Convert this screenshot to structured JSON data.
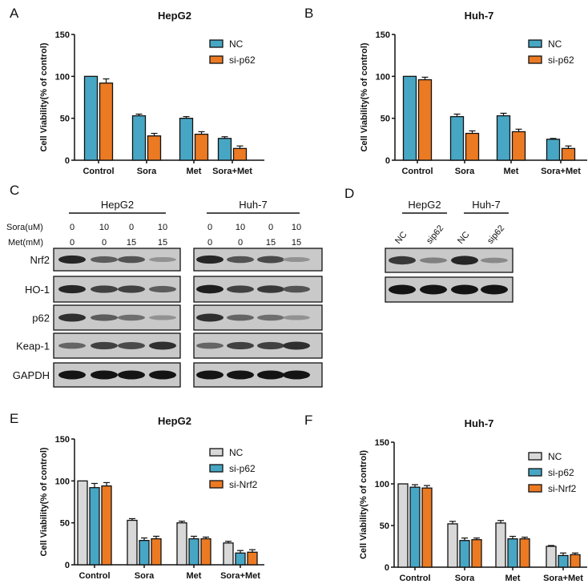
{
  "colors": {
    "NC_blue": "#47a6c4",
    "si_orange": "#ec7a23",
    "NC_gray": "#d8d8d8"
  },
  "chart_data": [
    {
      "panel": "A",
      "type": "bar",
      "title": "HepG2",
      "ylabel": "Cell Viability(% of control)",
      "ylim": [
        0,
        150
      ],
      "yticks": [
        0,
        50,
        100,
        150
      ],
      "categories": [
        "Control",
        "Sora",
        "Met",
        "Sora+Met"
      ],
      "legend": "top-right",
      "series": [
        {
          "name": "NC",
          "color": "#47a6c4",
          "values": [
            100,
            53,
            50,
            26
          ],
          "errors": [
            0,
            2,
            2,
            2
          ]
        },
        {
          "name": "si-p62",
          "color": "#ec7a23",
          "values": [
            92,
            29,
            31,
            14
          ],
          "errors": [
            5,
            3,
            3,
            3
          ]
        }
      ]
    },
    {
      "panel": "B",
      "type": "bar",
      "title": "Huh-7",
      "ylabel": "Cell Viability(% of control)",
      "ylim": [
        0,
        150
      ],
      "yticks": [
        0,
        50,
        100,
        150
      ],
      "categories": [
        "Control",
        "Sora",
        "Met",
        "Sora+Met"
      ],
      "legend": "top-right",
      "series": [
        {
          "name": "NC",
          "color": "#47a6c4",
          "values": [
            100,
            52,
            53,
            25
          ],
          "errors": [
            0,
            3,
            3,
            1
          ]
        },
        {
          "name": "si-p62",
          "color": "#ec7a23",
          "values": [
            96,
            32,
            34,
            14
          ],
          "errors": [
            3,
            3,
            3,
            3
          ]
        }
      ]
    },
    {
      "panel": "E",
      "type": "bar",
      "title": "HepG2",
      "ylabel": "Cell Viability(% of control)",
      "ylim": [
        0,
        150
      ],
      "yticks": [
        0,
        50,
        100,
        150
      ],
      "categories": [
        "Control",
        "Sora",
        "Met",
        "Sora+Met"
      ],
      "legend": "top-right",
      "series": [
        {
          "name": "NC",
          "color": "#d8d8d8",
          "values": [
            100,
            53,
            50,
            26
          ],
          "errors": [
            0,
            2,
            2,
            2
          ]
        },
        {
          "name": "si-p62",
          "color": "#47a6c4",
          "values": [
            92,
            29,
            31,
            14
          ],
          "errors": [
            5,
            3,
            3,
            3
          ]
        },
        {
          "name": "si-Nrf2",
          "color": "#ec7a23",
          "values": [
            94,
            31,
            31,
            15
          ],
          "errors": [
            4,
            3,
            2,
            3
          ]
        }
      ]
    },
    {
      "panel": "F",
      "type": "bar",
      "title": "Huh-7",
      "ylabel": "Cell Viability(% of control)",
      "ylim": [
        0,
        150
      ],
      "yticks": [
        0,
        50,
        100,
        150
      ],
      "categories": [
        "Control",
        "Sora",
        "Met",
        "Sora+Met"
      ],
      "legend": "top-right",
      "series": [
        {
          "name": "NC",
          "color": "#d8d8d8",
          "values": [
            100,
            52,
            53,
            25
          ],
          "errors": [
            0,
            3,
            3,
            1
          ]
        },
        {
          "name": "si-p62",
          "color": "#47a6c4",
          "values": [
            96,
            32,
            34,
            14
          ],
          "errors": [
            3,
            3,
            3,
            3
          ]
        },
        {
          "name": "si-Nrf2",
          "color": "#ec7a23",
          "values": [
            95,
            33,
            34,
            15
          ],
          "errors": [
            3,
            2,
            2,
            2
          ]
        }
      ]
    }
  ],
  "blot_c": {
    "panel": "C",
    "groups": [
      "HepG2",
      "Huh-7"
    ],
    "row_labels": {
      "sora": "Sora(uM)",
      "met": "Met(mM)"
    },
    "sora": [
      "0",
      "10",
      "0",
      "10"
    ],
    "met": [
      "0",
      "0",
      "15",
      "15"
    ],
    "proteins": [
      "Nrf2",
      "HO-1",
      "p62",
      "Keap-1",
      "GAPDH"
    ],
    "band_intensity": {
      "HepG2": [
        [
          0.9,
          0.6,
          0.65,
          0.3
        ],
        [
          0.9,
          0.75,
          0.75,
          0.6
        ],
        [
          0.85,
          0.6,
          0.5,
          0.3
        ],
        [
          0.55,
          0.75,
          0.7,
          0.85
        ],
        [
          1,
          1,
          1,
          1
        ]
      ],
      "Huh-7": [
        [
          0.9,
          0.65,
          0.7,
          0.3
        ],
        [
          0.95,
          0.75,
          0.8,
          0.65
        ],
        [
          0.85,
          0.55,
          0.5,
          0.3
        ],
        [
          0.55,
          0.75,
          0.75,
          0.85
        ],
        [
          1,
          1,
          1,
          1
        ]
      ]
    }
  },
  "blot_d": {
    "panel": "D",
    "groups": [
      "HepG2",
      "Huh-7"
    ],
    "lanes": [
      "NC",
      "sip62",
      "NC",
      "sip62"
    ],
    "band_intensity": [
      [
        0.8,
        0.4,
        0.9,
        0.35
      ],
      [
        1,
        1,
        1,
        1
      ]
    ]
  }
}
